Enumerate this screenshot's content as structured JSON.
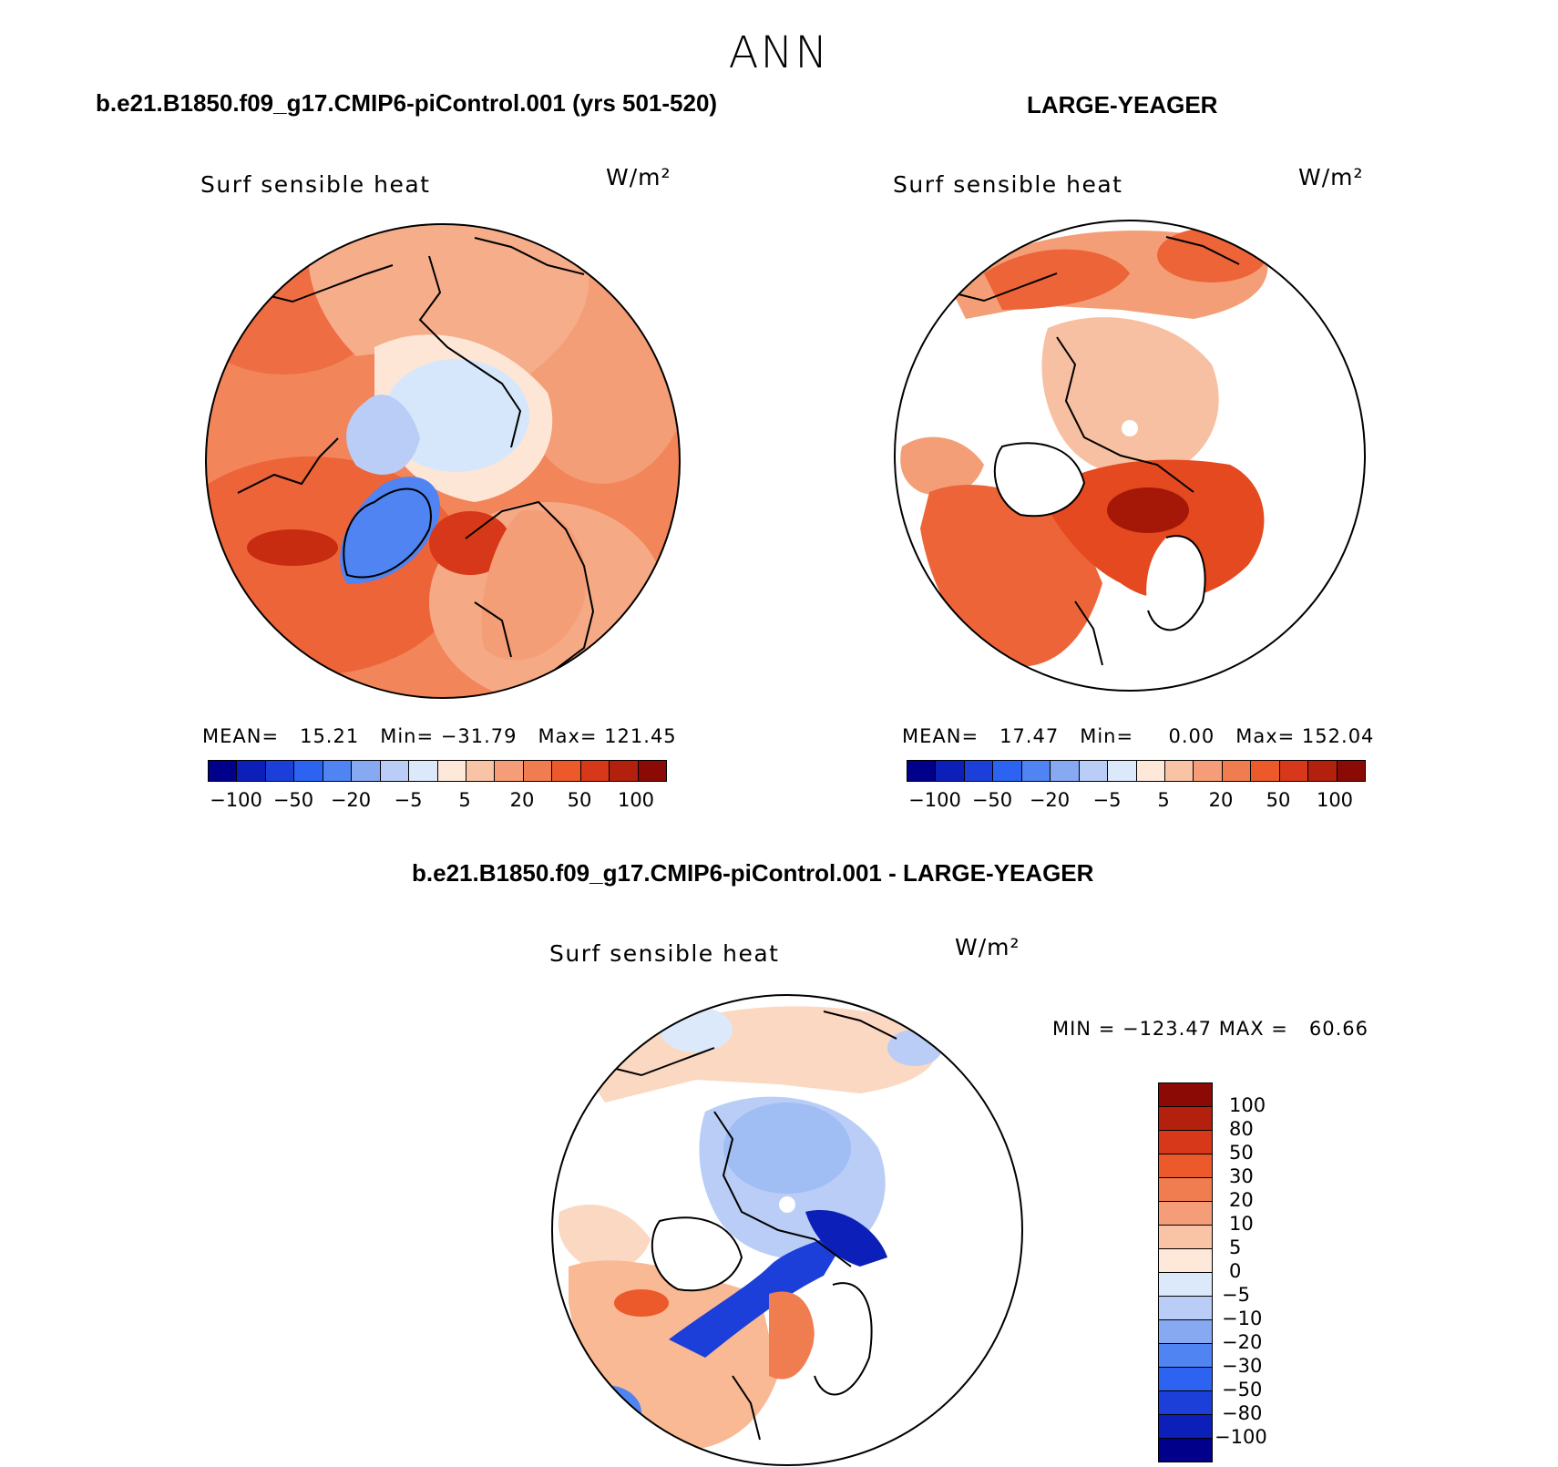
{
  "figure": {
    "title": "ANN",
    "panel1": {
      "header": "b.e21.B1850.f09_g17.CMIP6-piControl.001 (yrs 501-520)",
      "variable": "Surf sensible heat",
      "units": "W/m²",
      "stats_text": "MEAN=   15.21   Min= −31.79   Max= 121.45",
      "mean": 15.21,
      "min": -31.79,
      "max": 121.45
    },
    "panel2": {
      "header": "LARGE-YEAGER",
      "variable": "Surf sensible heat",
      "units": "W/m²",
      "stats_text": "MEAN=   17.47   Min=     0.00   Max= 152.04",
      "mean": 17.47,
      "min": 0.0,
      "max": 152.04
    },
    "panel3": {
      "header": "b.e21.B1850.f09_g17.CMIP6-piControl.001 - LARGE-YEAGER",
      "variable": "Surf sensible heat",
      "units": "W/m²",
      "stats_text": "MIN = −123.47 MAX =   60.66",
      "min": -123.47,
      "max": 60.66
    },
    "colorbar_top": {
      "colors": [
        "#00008b",
        "#0c20b9",
        "#1d3fd9",
        "#2c63f0",
        "#4f84f2",
        "#86a9f2",
        "#b9cdf6",
        "#dce9fb",
        "#fde8da",
        "#f9c3a6",
        "#f59d78",
        "#f07d4f",
        "#ec5a2c",
        "#d8381a",
        "#b3200e",
        "#8c0a05"
      ],
      "labels": [
        "−100",
        "−50",
        "−20",
        "−5",
        "5",
        "20",
        "50",
        "100"
      ]
    },
    "colorbar_diff": {
      "colors": [
        "#8c0a05",
        "#b3200e",
        "#d8381a",
        "#ec5a2c",
        "#f07d4f",
        "#f59d78",
        "#f9c3a6",
        "#fde8da",
        "#dce9fb",
        "#b9cdf6",
        "#86a9f2",
        "#4f84f2",
        "#2c63f0",
        "#1d3fd9",
        "#0c20b9",
        "#00008b"
      ],
      "labels": [
        "100",
        "80",
        "50",
        "30",
        "20",
        "10",
        "5",
        "0",
        "−5",
        "−10",
        "−20",
        "−30",
        "−50",
        "−80",
        "−100"
      ]
    }
  }
}
